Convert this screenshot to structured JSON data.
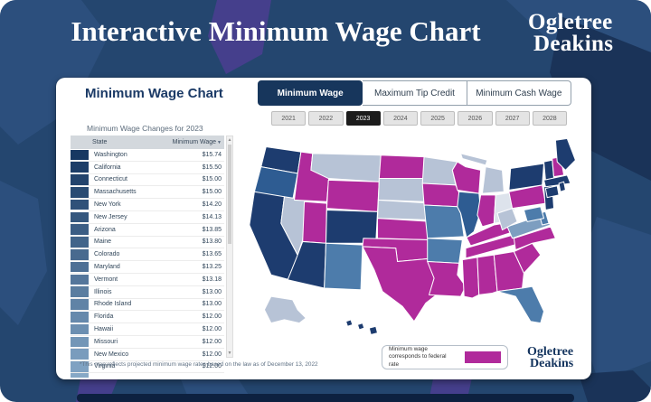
{
  "header": {
    "title": "Interactive Minimum Wage Chart",
    "brand_line1": "Ogletree",
    "brand_line2": "Deakins"
  },
  "card": {
    "heading": "Minimum Wage Chart",
    "tabs": [
      {
        "label": "Minimum Wage",
        "selected": true
      },
      {
        "label": "Maximum Tip Credit",
        "selected": false
      },
      {
        "label": "Minimum Cash Wage",
        "selected": false
      }
    ],
    "years": [
      {
        "label": "2021",
        "selected": false
      },
      {
        "label": "2022",
        "selected": false
      },
      {
        "label": "2023",
        "selected": true
      },
      {
        "label": "2024",
        "selected": false
      },
      {
        "label": "2025",
        "selected": false
      },
      {
        "label": "2026",
        "selected": false
      },
      {
        "label": "2027",
        "selected": false
      },
      {
        "label": "2028",
        "selected": false
      }
    ],
    "table": {
      "title": "Minimum Wage Changes for 2023",
      "columns": [
        "State",
        "Minimum Wage"
      ],
      "rows": [
        {
          "state": "Washington",
          "wage": "$15.74",
          "swatch": "#173862"
        },
        {
          "state": "California",
          "wage": "$15.50",
          "swatch": "#1d3e68"
        },
        {
          "state": "Connecticut",
          "wage": "$15.00",
          "swatch": "#23446d"
        },
        {
          "state": "Massachusetts",
          "wage": "$15.00",
          "swatch": "#294b73"
        },
        {
          "state": "New York",
          "wage": "$14.20",
          "swatch": "#2f5179"
        },
        {
          "state": "New Jersey",
          "wage": "$14.13",
          "swatch": "#35577e"
        },
        {
          "state": "Arizona",
          "wage": "$13.85",
          "swatch": "#3b5d84"
        },
        {
          "state": "Maine",
          "wage": "$13.80",
          "swatch": "#41648a"
        },
        {
          "state": "Colorado",
          "wage": "$13.65",
          "swatch": "#486a8f"
        },
        {
          "state": "Maryland",
          "wage": "$13.25",
          "swatch": "#4e7095"
        },
        {
          "state": "Vermont",
          "wage": "$13.18",
          "swatch": "#54769b"
        },
        {
          "state": "Illinois",
          "wage": "$13.00",
          "swatch": "#5a7da0"
        },
        {
          "state": "Rhode Island",
          "wage": "$13.00",
          "swatch": "#6083a6"
        },
        {
          "state": "Florida",
          "wage": "$12.00",
          "swatch": "#6689ac"
        },
        {
          "state": "Hawaii",
          "wage": "$12.00",
          "swatch": "#6c8fb1"
        },
        {
          "state": "Missouri",
          "wage": "$12.00",
          "swatch": "#7396b7"
        },
        {
          "state": "New Mexico",
          "wage": "$12.00",
          "swatch": "#799cbd"
        },
        {
          "state": "Virginia",
          "wage": "$12.00",
          "swatch": "#7fa2c2"
        }
      ]
    },
    "legend": {
      "label": "Minimum wage corresponds to federal rate",
      "swatch_color": "#b02a9b"
    },
    "footnote": "*This map reflects projected minimum wage rates based on the law as of December 13, 2022",
    "brand_line1": "Ogletree",
    "brand_line2": "Deakins"
  },
  "icons": {
    "sort_desc": "▼",
    "scroll_up": "▲",
    "scroll_down": "▼"
  },
  "map": {
    "colors": {
      "dark": "#1d3c6f",
      "mediumDark": "#2e5c92",
      "steel": "#4d7cab",
      "lightSteel": "#7d9ec0",
      "light": "#b7c3d6",
      "pale": "#dde3ec",
      "magenta": "#b02a9b"
    },
    "legend_meaning": {
      "magenta": "minimum wage corresponds to federal rate"
    },
    "states": [
      {
        "id": "WA",
        "name": "Washington",
        "category": "dark"
      },
      {
        "id": "OR",
        "name": "Oregon",
        "category": "mediumDark"
      },
      {
        "id": "CA",
        "name": "California",
        "category": "dark"
      },
      {
        "id": "NV",
        "name": "Nevada",
        "category": "light"
      },
      {
        "id": "ID",
        "name": "Idaho",
        "category": "magenta"
      },
      {
        "id": "MT",
        "name": "Montana",
        "category": "light"
      },
      {
        "id": "WY",
        "name": "Wyoming",
        "category": "magenta"
      },
      {
        "id": "UT",
        "name": "Utah",
        "category": "magenta"
      },
      {
        "id": "CO",
        "name": "Colorado",
        "category": "dark"
      },
      {
        "id": "AZ",
        "name": "Arizona",
        "category": "dark"
      },
      {
        "id": "NM",
        "name": "New Mexico",
        "category": "steel"
      },
      {
        "id": "ND",
        "name": "North Dakota",
        "category": "magenta"
      },
      {
        "id": "SD",
        "name": "South Dakota",
        "category": "light"
      },
      {
        "id": "NE",
        "name": "Nebraska",
        "category": "light"
      },
      {
        "id": "KS",
        "name": "Kansas",
        "category": "magenta"
      },
      {
        "id": "OK",
        "name": "Oklahoma",
        "category": "magenta"
      },
      {
        "id": "TX",
        "name": "Texas",
        "category": "magenta"
      },
      {
        "id": "MN",
        "name": "Minnesota",
        "category": "light"
      },
      {
        "id": "IA",
        "name": "Iowa",
        "category": "magenta"
      },
      {
        "id": "MO",
        "name": "Missouri",
        "category": "steel"
      },
      {
        "id": "AR",
        "name": "Arkansas",
        "category": "steel"
      },
      {
        "id": "LA",
        "name": "Louisiana",
        "category": "magenta"
      },
      {
        "id": "WI",
        "name": "Wisconsin",
        "category": "magenta"
      },
      {
        "id": "MU",
        "name": "Michigan Upper Peninsula",
        "category": "light"
      },
      {
        "id": "MI",
        "name": "Michigan",
        "category": "light"
      },
      {
        "id": "IL",
        "name": "Illinois",
        "category": "mediumDark"
      },
      {
        "id": "IN",
        "name": "Indiana",
        "category": "magenta"
      },
      {
        "id": "OH",
        "name": "Ohio",
        "category": "pale"
      },
      {
        "id": "KY",
        "name": "Kentucky",
        "category": "magenta"
      },
      {
        "id": "TN",
        "name": "Tennessee",
        "category": "magenta"
      },
      {
        "id": "MS",
        "name": "Mississippi",
        "category": "magenta"
      },
      {
        "id": "AL",
        "name": "Alabama",
        "category": "magenta"
      },
      {
        "id": "GA",
        "name": "Georgia",
        "category": "magenta"
      },
      {
        "id": "FL",
        "name": "Florida",
        "category": "steel"
      },
      {
        "id": "SC",
        "name": "South Carolina",
        "category": "magenta"
      },
      {
        "id": "NC",
        "name": "North Carolina",
        "category": "magenta"
      },
      {
        "id": "VA",
        "name": "Virginia",
        "category": "lightSteel"
      },
      {
        "id": "WV",
        "name": "West Virginia",
        "category": "light"
      },
      {
        "id": "PA",
        "name": "Pennsylvania",
        "category": "magenta"
      },
      {
        "id": "NY",
        "name": "New York",
        "category": "dark"
      },
      {
        "id": "NJ",
        "name": "New Jersey",
        "category": "dark"
      },
      {
        "id": "DE",
        "name": "Delaware",
        "category": "steel"
      },
      {
        "id": "MD",
        "name": "Maryland",
        "category": "steel"
      },
      {
        "id": "VT",
        "name": "Vermont",
        "category": "dark"
      },
      {
        "id": "NH",
        "name": "New Hampshire",
        "category": "magenta"
      },
      {
        "id": "ME",
        "name": "Maine",
        "category": "dark"
      },
      {
        "id": "MA",
        "name": "Massachusetts",
        "category": "dark"
      },
      {
        "id": "CT",
        "name": "Connecticut",
        "category": "dark"
      },
      {
        "id": "RI",
        "name": "Rhode Island",
        "category": "dark"
      },
      {
        "id": "AK",
        "name": "Alaska",
        "category": "light"
      },
      {
        "id": "H1",
        "name": "Hawaii",
        "category": "dark"
      },
      {
        "id": "H2",
        "name": "Hawaii",
        "category": "dark"
      },
      {
        "id": "H3",
        "name": "Hawaii",
        "category": "dark"
      }
    ]
  }
}
